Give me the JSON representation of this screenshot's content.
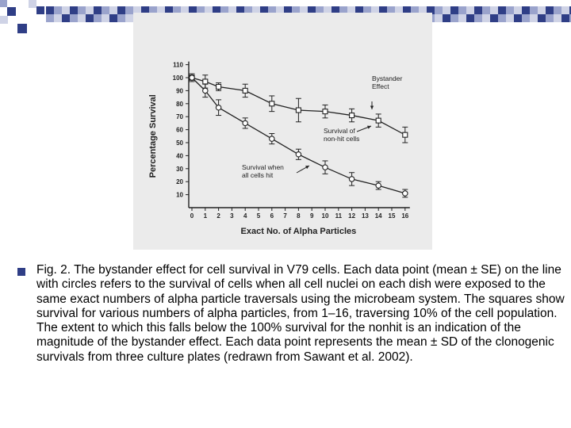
{
  "slide": {
    "caption": "Fig. 2. The bystander effect for cell survival in V79 cells. Each data point (mean ± SE) on the line with circles refers to the survival of cells when all cell nuclei on each dish were exposed to the same exact numbers of alpha particle traversals using the microbeam system. The squares show survival for various numbers of alpha particles, from 1–16, traversing 10% of the cell population. The extent to which this falls below the 100% survival for the nonhit is an indication of the magnitude of the bystander effect. Each data point represents the mean ± SD of the clonogenic survivals from three culture plates (redrawn from Sawant et al. 2002)."
  },
  "colors": {
    "band_dark": "#2f3e86",
    "band_mid": "#9aa3cc",
    "band_light": "#cfd3e6",
    "panel_bg": "#ebebeb",
    "ink": "#222222"
  },
  "chart_data": {
    "type": "line",
    "xlabel": "Exact No. of Alpha Particles",
    "ylabel": "Percentage Survival",
    "xlim": [
      0,
      16
    ],
    "ylim": [
      0,
      110
    ],
    "x_ticks": [
      0,
      1,
      2,
      3,
      4,
      5,
      6,
      7,
      8,
      9,
      10,
      11,
      12,
      13,
      14,
      15,
      16
    ],
    "y_ticks": [
      10,
      20,
      30,
      40,
      50,
      60,
      70,
      80,
      90,
      100,
      110
    ],
    "series": [
      {
        "marker": "square",
        "x": [
          0,
          1,
          2,
          4,
          6,
          8,
          10,
          12,
          14,
          16
        ],
        "y": [
          100,
          97,
          93,
          90,
          80,
          75,
          74,
          71,
          67,
          56
        ],
        "err": [
          2,
          5,
          3,
          5,
          6,
          9,
          5,
          5,
          5,
          6
        ]
      },
      {
        "marker": "circle",
        "x": [
          0,
          1,
          2,
          4,
          6,
          8,
          10,
          12,
          14,
          16
        ],
        "y": [
          100,
          90,
          77,
          65,
          53,
          41,
          31,
          22,
          17,
          11
        ],
        "err": [
          3,
          5,
          6,
          4,
          4,
          4,
          5,
          5,
          3,
          3
        ]
      }
    ],
    "annotations": [
      {
        "text": "Bystander Effect",
        "lines": [
          "Bystander",
          "Effect"
        ]
      },
      {
        "text": "Survival of non-hit cells",
        "lines": [
          "Survival of",
          "non-hit cells"
        ]
      },
      {
        "text": "Survival when all cells hit",
        "lines": [
          "Survival when",
          "all cells hit"
        ]
      }
    ]
  }
}
